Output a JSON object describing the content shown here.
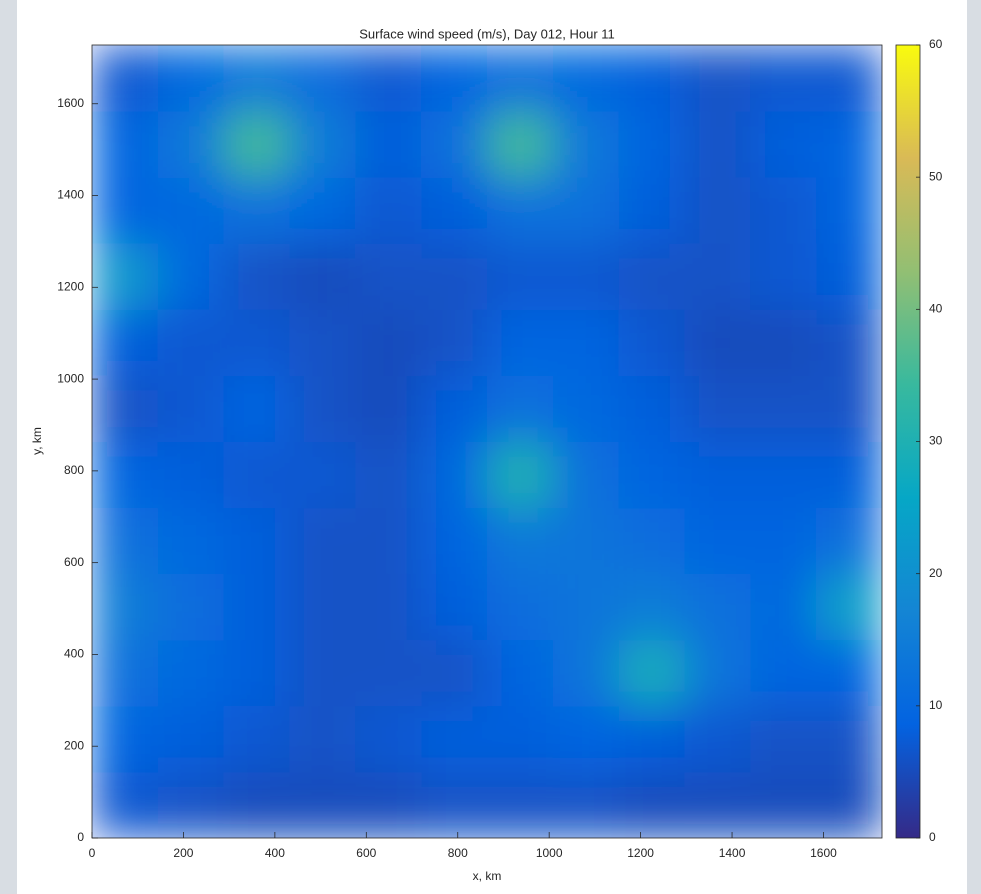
{
  "chart_data": {
    "type": "heatmap",
    "title": "Surface wind speed (m/s), Day 012, Hour 11",
    "x_label": "x, km",
    "y_label": "y, km",
    "x": [
      72,
      216,
      360,
      504,
      648,
      792,
      936,
      1080,
      1224,
      1368,
      1512,
      1656
    ],
    "y": [
      72,
      216,
      360,
      504,
      648,
      792,
      936,
      1080,
      1224,
      1368,
      1512,
      1656
    ],
    "values": [
      [
        7,
        6,
        5,
        5,
        5,
        6,
        6,
        6,
        5,
        5,
        5,
        5
      ],
      [
        9,
        8,
        7,
        6,
        7,
        8,
        8,
        9,
        8,
        7,
        6,
        6
      ],
      [
        12,
        10,
        8,
        6,
        6,
        6,
        9,
        13,
        28,
        13,
        9,
        9
      ],
      [
        15,
        11,
        8,
        6,
        6,
        8,
        11,
        13,
        15,
        12,
        10,
        24
      ],
      [
        12,
        10,
        8,
        6,
        6,
        9,
        14,
        13,
        11,
        9,
        9,
        12
      ],
      [
        9,
        8,
        7,
        7,
        6,
        10,
        30,
        12,
        9,
        8,
        8,
        8
      ],
      [
        6,
        7,
        9,
        6,
        5,
        8,
        12,
        10,
        8,
        6,
        6,
        6
      ],
      [
        8,
        7,
        7,
        6,
        5,
        6,
        9,
        9,
        7,
        5,
        5,
        6
      ],
      [
        22,
        10,
        6,
        5,
        6,
        6,
        7,
        7,
        6,
        6,
        7,
        8
      ],
      [
        9,
        10,
        12,
        10,
        7,
        8,
        12,
        12,
        8,
        6,
        7,
        9
      ],
      [
        9,
        14,
        35,
        15,
        8,
        12,
        35,
        14,
        9,
        6,
        8,
        9
      ],
      [
        7,
        10,
        14,
        11,
        7,
        9,
        12,
        10,
        8,
        6,
        7,
        7
      ]
    ],
    "xlim": [
      0,
      1728
    ],
    "ylim": [
      0,
      1728
    ],
    "xticks": [
      0,
      200,
      400,
      600,
      800,
      1000,
      1200,
      1400,
      1600
    ],
    "yticks": [
      0,
      200,
      400,
      600,
      800,
      1000,
      1200,
      1400,
      1600
    ],
    "clim": [
      0,
      60
    ],
    "cticks": [
      0,
      10,
      20,
      30,
      40,
      50,
      60
    ],
    "colormap": [
      "#352a87",
      "#0363e1",
      "#1485d4",
      "#06a7c6",
      "#38b99e",
      "#92bf73",
      "#d9ba56",
      "#f9fb0e"
    ]
  }
}
